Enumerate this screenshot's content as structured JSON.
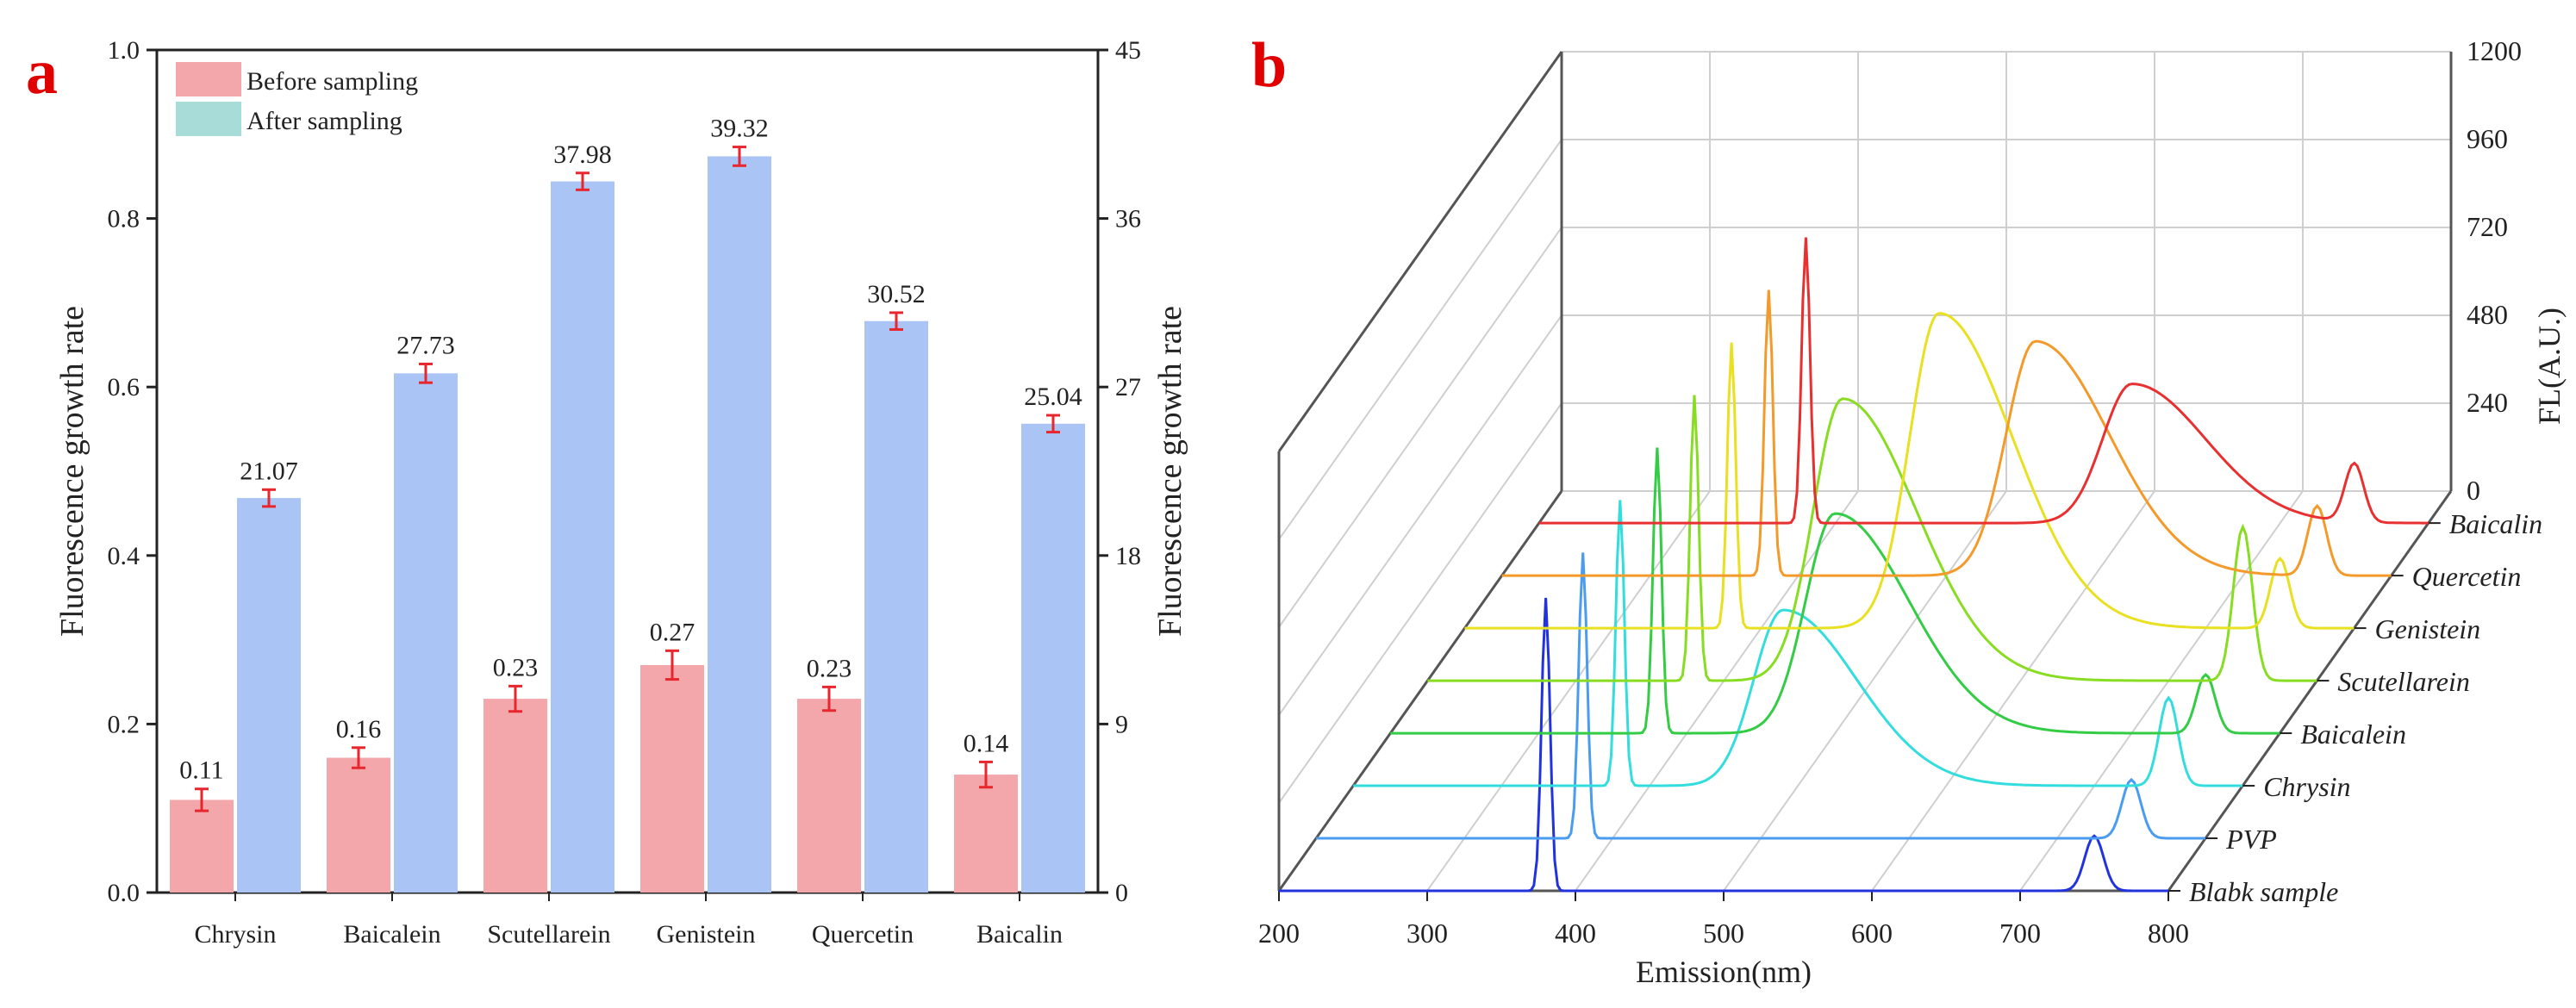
{
  "chart_data": [
    {
      "type": "bar",
      "panel_label": "a",
      "categories": [
        "Chrysin",
        "Baicalein",
        "Scutellarein",
        "Genistein",
        "Quercetin",
        "Baicalin"
      ],
      "series": [
        {
          "name": "Before sampling",
          "axis": "left",
          "color": "#f4a7ab",
          "values": [
            0.11,
            0.16,
            0.23,
            0.27,
            0.23,
            0.14
          ],
          "labels": [
            "0.11",
            "0.16",
            "0.23",
            "0.27",
            "0.23",
            "0.14"
          ],
          "errors": [
            0.013,
            0.012,
            0.015,
            0.017,
            0.014,
            0.015
          ]
        },
        {
          "name": "After sampling",
          "axis": "right",
          "color": "#a9c4f5",
          "values": [
            21.07,
            27.73,
            37.98,
            39.32,
            30.52,
            25.04
          ],
          "labels": [
            "21.07",
            "27.73",
            "37.98",
            "39.32",
            "30.52",
            "25.04"
          ],
          "errors": [
            0.45,
            0.5,
            0.45,
            0.5,
            0.45,
            0.45
          ]
        }
      ],
      "legend": [
        {
          "label": "Before sampling",
          "color": "#f4a7ab"
        },
        {
          "label": "After sampling",
          "color": "#a8dcd8"
        }
      ],
      "ylabel": "Fluorescence growth rate",
      "ylabel_right": "Fluorescence growth rate",
      "ylim": [
        0,
        1.0
      ],
      "ylim_right": [
        0,
        45
      ],
      "yticks": [
        "0.0",
        "0.2",
        "0.4",
        "0.6",
        "0.8",
        "1.0"
      ],
      "yticks_right": [
        "0",
        "9",
        "18",
        "27",
        "36",
        "45"
      ],
      "error_color": "#e8262d"
    },
    {
      "type": "line",
      "panel_label": "b",
      "xlabel": "Emission(nm)",
      "zlabel": "FL(A.U.)",
      "xlim": [
        200,
        800
      ],
      "xticks": [
        "200",
        "300",
        "400",
        "500",
        "600",
        "700",
        "800"
      ],
      "zlim": [
        0,
        1200
      ],
      "zticks": [
        "0",
        "240",
        "480",
        "720",
        "960",
        "1200"
      ],
      "series": [
        {
          "name": "Blabk sample",
          "color": "#2233dd",
          "peaks": [
            {
              "x": 380,
              "y": 800
            },
            {
              "x": 750,
              "y": 150
            }
          ]
        },
        {
          "name": "PVP",
          "color": "#4a9cf0",
          "peaks": [
            {
              "x": 380,
              "y": 780
            },
            {
              "x": 750,
              "y": 160
            }
          ]
        },
        {
          "name": "Chrysin",
          "color": "#33dddd",
          "peaks": [
            {
              "x": 380,
              "y": 780
            },
            {
              "x": 490,
              "y": 480
            },
            {
              "x": 750,
              "y": 240
            }
          ]
        },
        {
          "name": "Baicalein",
          "color": "#33cc44",
          "peaks": [
            {
              "x": 380,
              "y": 780
            },
            {
              "x": 500,
              "y": 600
            },
            {
              "x": 750,
              "y": 160
            }
          ]
        },
        {
          "name": "Scutellarein",
          "color": "#88dd22",
          "peaks": [
            {
              "x": 380,
              "y": 780
            },
            {
              "x": 480,
              "y": 770
            },
            {
              "x": 750,
              "y": 420
            }
          ]
        },
        {
          "name": "Genistein",
          "color": "#e8e020",
          "peaks": [
            {
              "x": 380,
              "y": 780
            },
            {
              "x": 520,
              "y": 860
            },
            {
              "x": 750,
              "y": 190
            }
          ]
        },
        {
          "name": "Quercetin",
          "color": "#f39a2a",
          "peaks": [
            {
              "x": 380,
              "y": 780
            },
            {
              "x": 560,
              "y": 640
            },
            {
              "x": 750,
              "y": 190
            }
          ]
        },
        {
          "name": "Baicalin",
          "color": "#e83030",
          "peaks": [
            {
              "x": 380,
              "y": 780
            },
            {
              "x": 600,
              "y": 380
            },
            {
              "x": 750,
              "y": 160
            }
          ]
        }
      ]
    }
  ]
}
